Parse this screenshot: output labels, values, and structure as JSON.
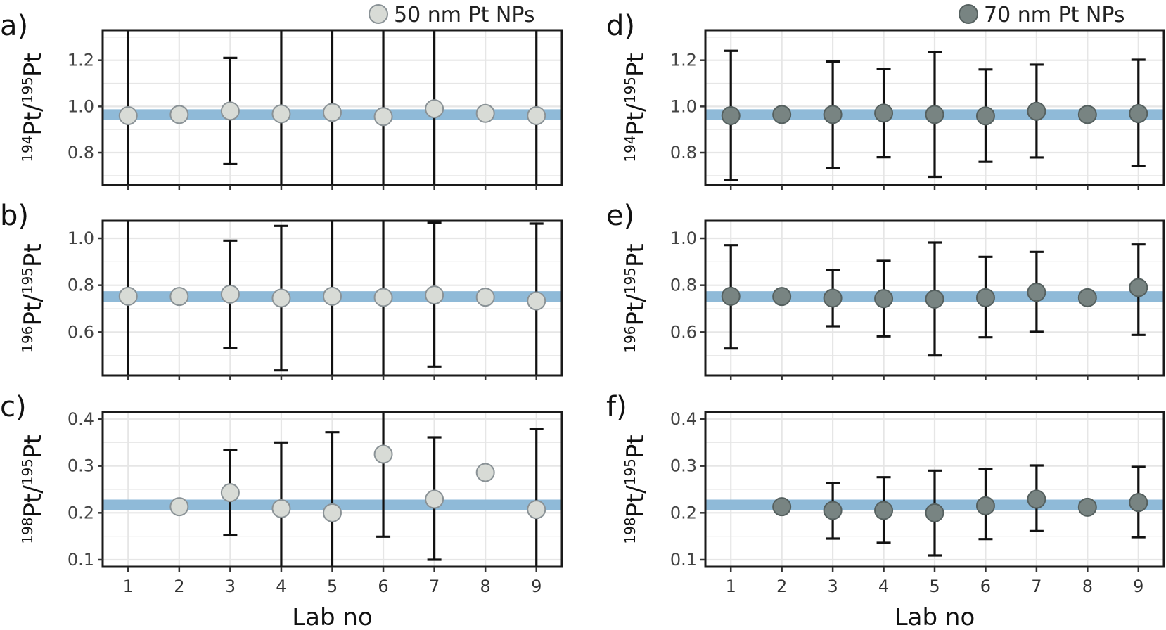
{
  "chart_data": [
    {
      "type": "scatter",
      "panel_label": "a)",
      "legend": "50 nm Pt NPs",
      "ylabel": {
        "mass": "194",
        "num": "Pt",
        "den_mass": "195",
        "den": "Pt"
      },
      "ylim": [
        0.66,
        1.33
      ],
      "yticks": [
        "0.8",
        "1.0",
        "1.2"
      ],
      "reference_value": 0.965,
      "x": [
        1,
        2,
        3,
        4,
        5,
        6,
        7,
        8,
        9
      ],
      "y": [
        0.96,
        0.965,
        0.98,
        0.968,
        0.974,
        0.956,
        0.99,
        0.97,
        0.96
      ],
      "err_low": [
        0.5,
        null,
        0.75,
        0.5,
        0.5,
        0.5,
        0.5,
        null,
        0.5
      ],
      "err_high": [
        1.5,
        null,
        1.21,
        1.5,
        1.5,
        1.5,
        1.5,
        null,
        1.5
      ],
      "xlabel": "",
      "show_xticks": false
    },
    {
      "type": "scatter",
      "panel_label": "b)",
      "ylabel": {
        "mass": "196",
        "num": "Pt",
        "den_mass": "195",
        "den": "Pt"
      },
      "ylim": [
        0.415,
        1.075
      ],
      "yticks": [
        "0.6",
        "0.8",
        "1.0"
      ],
      "reference_value": 0.752,
      "x": [
        1,
        2,
        3,
        4,
        5,
        6,
        7,
        8,
        9
      ],
      "y": [
        0.753,
        0.752,
        0.762,
        0.745,
        0.753,
        0.748,
        0.758,
        0.749,
        0.733
      ],
      "err_low": [
        0.3,
        null,
        0.532,
        0.437,
        0.3,
        0.3,
        0.453,
        null,
        0.3
      ],
      "err_high": [
        1.2,
        null,
        0.99,
        1.053,
        1.2,
        1.2,
        1.067,
        null,
        1.063
      ],
      "xlabel": "",
      "show_xticks": false
    },
    {
      "type": "scatter",
      "panel_label": "c)",
      "ylabel": {
        "mass": "198",
        "num": "Pt",
        "den_mass": "195",
        "den": "Pt"
      },
      "ylim": [
        0.085,
        0.415
      ],
      "yticks": [
        "0.1",
        "0.2",
        "0.3",
        "0.4"
      ],
      "reference_value": 0.217,
      "x": [
        2,
        3,
        4,
        5,
        6,
        7,
        8,
        9
      ],
      "y": [
        0.213,
        0.243,
        0.209,
        0.2,
        0.325,
        0.229,
        0.286,
        0.207
      ],
      "err_low": [
        null,
        0.153,
        0.05,
        0.05,
        0.149,
        0.1,
        null,
        0.05
      ],
      "err_high": [
        null,
        0.334,
        0.35,
        0.372,
        0.5,
        0.361,
        null,
        0.379
      ],
      "xlabel": "Lab no",
      "show_xticks": true
    },
    {
      "type": "scatter",
      "panel_label": "d)",
      "legend": "70 nm Pt NPs",
      "ylabel": {
        "mass": "194",
        "num": "Pt",
        "den_mass": "195",
        "den": "Pt"
      },
      "ylim": [
        0.66,
        1.33
      ],
      "yticks": [
        "0.8",
        "1.0",
        "1.2"
      ],
      "reference_value": 0.965,
      "x": [
        1,
        2,
        3,
        4,
        5,
        6,
        7,
        8,
        9
      ],
      "y": [
        0.96,
        0.965,
        0.965,
        0.971,
        0.965,
        0.959,
        0.979,
        0.965,
        0.969
      ],
      "err_low": [
        0.68,
        null,
        0.733,
        0.78,
        0.695,
        0.76,
        0.779,
        null,
        0.741
      ],
      "err_high": [
        1.241,
        null,
        1.194,
        1.163,
        1.236,
        1.16,
        1.181,
        null,
        1.202
      ],
      "xlabel": "",
      "show_xticks": false
    },
    {
      "type": "scatter",
      "panel_label": "e)",
      "ylabel": {
        "mass": "196",
        "num": "Pt",
        "den_mass": "195",
        "den": "Pt"
      },
      "ylim": [
        0.415,
        1.075
      ],
      "yticks": [
        "0.6",
        "0.8",
        "1.0"
      ],
      "reference_value": 0.752,
      "x": [
        1,
        2,
        3,
        4,
        5,
        6,
        7,
        8,
        9
      ],
      "y": [
        0.753,
        0.752,
        0.745,
        0.743,
        0.741,
        0.747,
        0.77,
        0.747,
        0.79
      ],
      "err_low": [
        0.53,
        null,
        0.625,
        0.582,
        0.5,
        0.578,
        0.601,
        null,
        0.588
      ],
      "err_high": [
        0.971,
        null,
        0.866,
        0.904,
        0.982,
        0.921,
        0.942,
        null,
        0.974
      ],
      "xlabel": "",
      "show_xticks": false
    },
    {
      "type": "scatter",
      "panel_label": "f)",
      "ylabel": {
        "mass": "198",
        "num": "Pt",
        "den_mass": "195",
        "den": "Pt"
      },
      "ylim": [
        0.085,
        0.415
      ],
      "yticks": [
        "0.1",
        "0.2",
        "0.3",
        "0.4"
      ],
      "reference_value": 0.217,
      "x": [
        2,
        3,
        4,
        5,
        6,
        7,
        8,
        9
      ],
      "y": [
        0.213,
        0.205,
        0.205,
        0.2,
        0.215,
        0.229,
        0.212,
        0.222
      ],
      "err_low": [
        null,
        0.145,
        0.136,
        0.109,
        0.144,
        0.161,
        null,
        0.148
      ],
      "err_high": [
        null,
        0.264,
        0.276,
        0.29,
        0.294,
        0.301,
        null,
        0.298
      ],
      "xlabel": "Lab no",
      "show_xticks": true
    }
  ],
  "x_tick_labels": [
    "1",
    "2",
    "3",
    "4",
    "5",
    "6",
    "7",
    "8",
    "9"
  ],
  "colors": {
    "marker_50nm": "#d8dbd6",
    "marker_50nm_edge": "#8a9296",
    "marker_70nm": "#788482",
    "marker_70nm_edge": "#55605f",
    "reference_band": "#8fbad8",
    "grid": "#e6e6e6",
    "frame": "#1a1a1a"
  }
}
